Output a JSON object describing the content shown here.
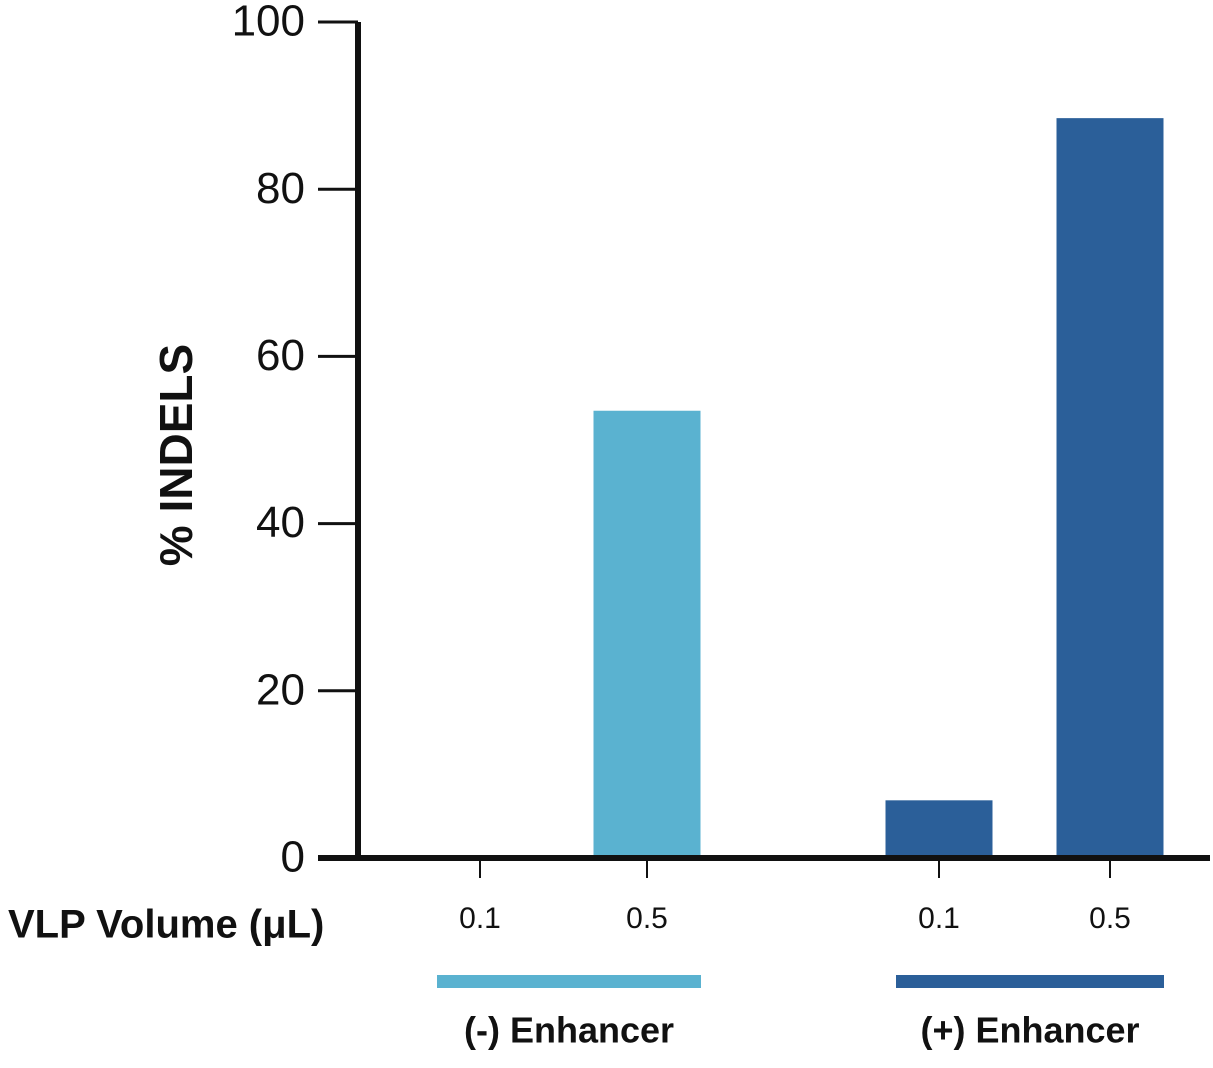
{
  "chart_data": {
    "type": "grouped-bar",
    "ylabel": "% INDELS",
    "xlabel": "VLP Volume (μL)",
    "ylim": [
      0,
      100
    ],
    "yticks": [
      0,
      20,
      40,
      60,
      80,
      100
    ],
    "groups": [
      {
        "name": "(-) Enhancer",
        "color": "#5ab2d0",
        "categories": [
          "0.1",
          "0.5"
        ],
        "values": [
          0,
          53.5
        ]
      },
      {
        "name": "(+) Enhancer",
        "color": "#2b5f99",
        "categories": [
          "0.1",
          "0.5"
        ],
        "values": [
          6.9,
          88.5
        ]
      }
    ]
  }
}
